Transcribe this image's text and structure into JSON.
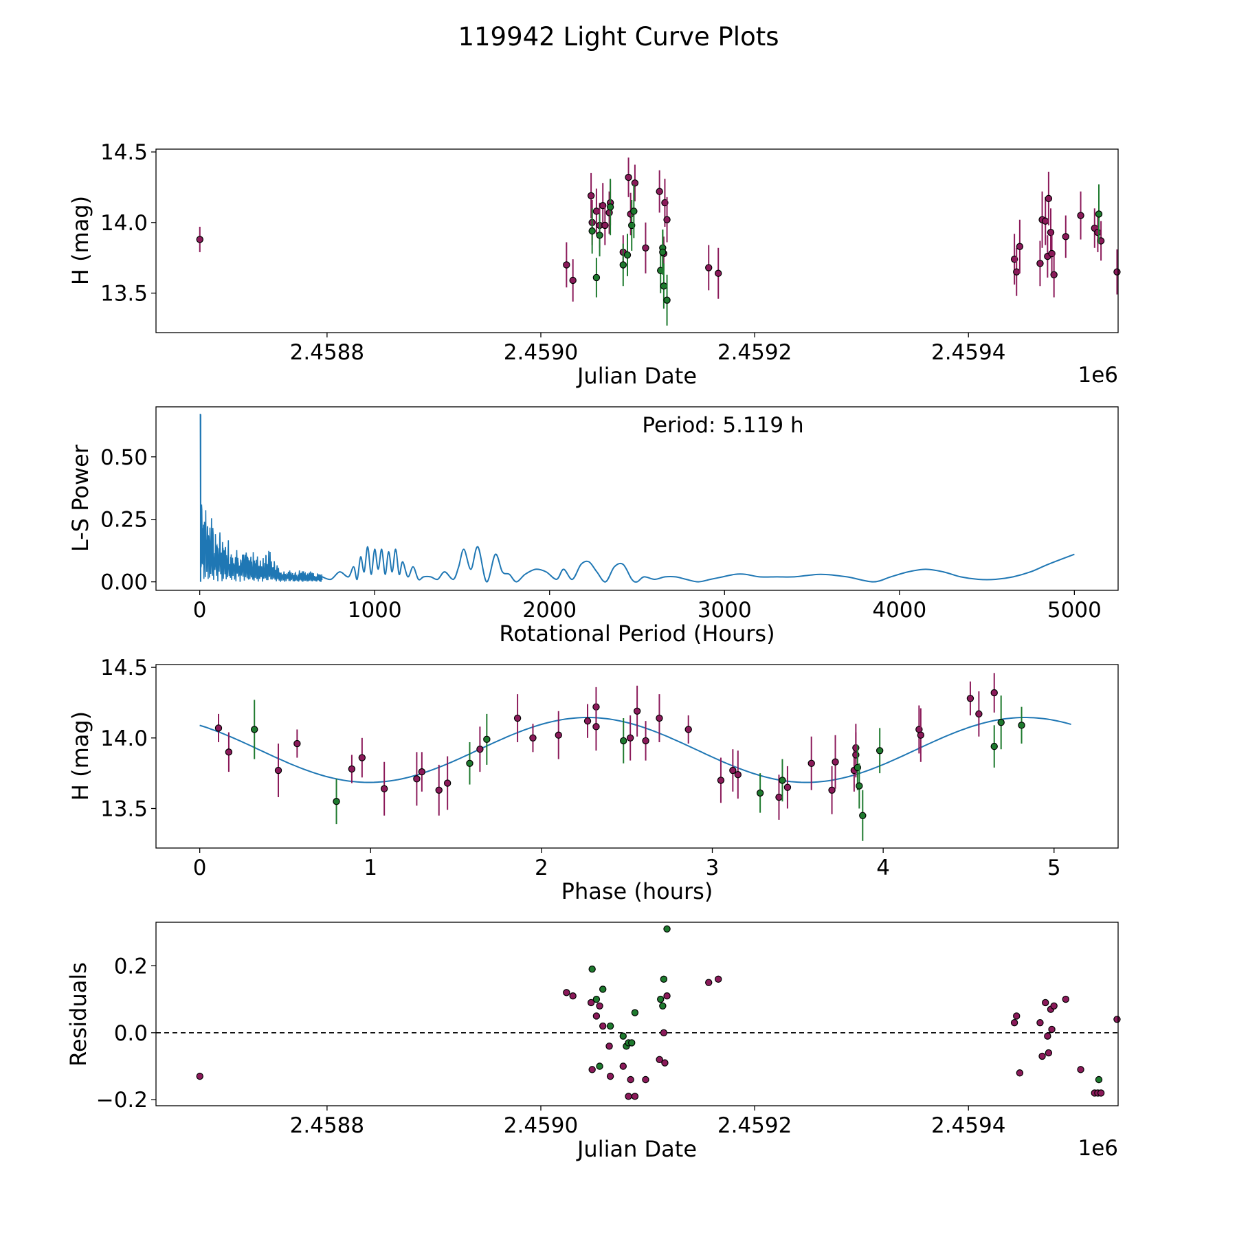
{
  "figure_title": "119942 Light Curve Plots",
  "colors": {
    "purple": "#8b1a5a",
    "green": "#1e7a2e",
    "line": "#1f77b4",
    "marker_edge": "#000000"
  },
  "chart_data": [
    {
      "type": "scatter",
      "title": "",
      "xlabel": "Julian Date",
      "ylabel": "H (mag)",
      "offset_label": "1e6",
      "xlim": [
        2458640,
        2459540
      ],
      "ylim": [
        13.22,
        14.52
      ],
      "xticks": [
        2458800,
        2459000,
        2459200,
        2459400
      ],
      "xtick_labels": [
        "2.4588",
        "2.4590",
        "2.4592",
        "2.4594"
      ],
      "yticks": [
        13.5,
        14.0,
        14.5
      ],
      "ytick_labels": [
        "13.5",
        "14.0",
        "14.5"
      ],
      "series": [
        {
          "name": "purple",
          "points": [
            [
              2458681,
              13.88,
              0.09
            ],
            [
              2459024,
              13.7,
              0.16
            ],
            [
              2459030,
              13.59,
              0.15
            ],
            [
              2459047,
              14.19,
              0.16
            ],
            [
              2459048,
              14.0,
              0.16
            ],
            [
              2459052,
              14.08,
              0.16
            ],
            [
              2459055,
              13.98,
              0.16
            ],
            [
              2459058,
              14.12,
              0.16
            ],
            [
              2459060,
              13.98,
              0.14
            ],
            [
              2459064,
              14.07,
              0.15
            ],
            [
              2459065,
              14.14,
              0.16
            ],
            [
              2459077,
              13.79,
              0.12
            ],
            [
              2459082,
              14.32,
              0.14
            ],
            [
              2459084,
              14.06,
              0.15
            ],
            [
              2459088,
              14.28,
              0.13
            ],
            [
              2459098,
              13.82,
              0.18
            ],
            [
              2459111,
              14.22,
              0.15
            ],
            [
              2459115,
              13.78,
              0.12
            ],
            [
              2459116,
              14.14,
              0.17
            ],
            [
              2459118,
              14.02,
              0.16
            ],
            [
              2459157,
              13.68,
              0.16
            ],
            [
              2459166,
              13.64,
              0.18
            ],
            [
              2459443,
              13.74,
              0.18
            ],
            [
              2459445,
              13.65,
              0.17
            ],
            [
              2459448,
              13.83,
              0.19
            ],
            [
              2459467,
              13.71,
              0.16
            ],
            [
              2459469,
              14.02,
              0.2
            ],
            [
              2459472,
              14.01,
              0.17
            ],
            [
              2459474,
              13.76,
              0.15
            ],
            [
              2459475,
              14.17,
              0.19
            ],
            [
              2459477,
              13.93,
              0.17
            ],
            [
              2459478,
              13.78,
              0.16
            ],
            [
              2459480,
              13.63,
              0.16
            ],
            [
              2459491,
              13.9,
              0.15
            ],
            [
              2459505,
              14.05,
              0.17
            ],
            [
              2459518,
              13.96,
              0.14
            ],
            [
              2459521,
              13.93,
              0.14
            ],
            [
              2459524,
              13.87,
              0.14
            ],
            [
              2459539,
              13.65,
              0.16
            ]
          ]
        },
        {
          "name": "green",
          "points": [
            [
              2459048,
              13.94,
              0.16
            ],
            [
              2459052,
              13.61,
              0.14
            ],
            [
              2459055,
              13.91,
              0.15
            ],
            [
              2459065,
              14.11,
              0.2
            ],
            [
              2459077,
              13.7,
              0.15
            ],
            [
              2459081,
              13.77,
              0.15
            ],
            [
              2459085,
              13.98,
              0.18
            ],
            [
              2459087,
              14.08,
              0.19
            ],
            [
              2459112,
              13.66,
              0.16
            ],
            [
              2459114,
              13.82,
              0.13
            ],
            [
              2459114,
              13.79,
              0.16
            ],
            [
              2459115,
              13.55,
              0.16
            ],
            [
              2459118,
              13.45,
              0.18
            ],
            [
              2459522,
              14.06,
              0.21
            ]
          ]
        }
      ]
    },
    {
      "type": "line",
      "title": "",
      "annotation": "Period: 5.119 h",
      "xlabel": "Rotational Period (Hours)",
      "ylabel": "L-S Power",
      "xlim": [
        -250,
        5250
      ],
      "ylim": [
        -0.034,
        0.7
      ],
      "xticks": [
        0,
        1000,
        2000,
        3000,
        4000,
        5000
      ],
      "xtick_labels": [
        "0",
        "1000",
        "2000",
        "3000",
        "4000",
        "5000"
      ],
      "yticks": [
        0.0,
        0.25,
        0.5
      ],
      "ytick_labels": [
        "0.00",
        "0.25",
        "0.50"
      ],
      "peak_period_hours": 5.119,
      "peak_power": 0.67,
      "envelope": {
        "x": [
          0,
          10,
          50,
          100,
          150,
          200,
          250,
          300,
          350,
          400,
          450,
          500,
          600,
          700
        ],
        "y": [
          0.67,
          0.4,
          0.3,
          0.23,
          0.19,
          0.16,
          0.14,
          0.13,
          0.1,
          0.13,
          0.06,
          0.05,
          0.05,
          0.03
        ]
      },
      "smooth": {
        "x": [
          700,
          750,
          800,
          850,
          880,
          900,
          920,
          940,
          960,
          980,
          1000,
          1020,
          1040,
          1060,
          1080,
          1100,
          1120,
          1140,
          1160,
          1190,
          1220,
          1250,
          1280,
          1320,
          1360,
          1400,
          1450,
          1480,
          1510,
          1550,
          1590,
          1640,
          1690,
          1730,
          1770,
          1810,
          1860,
          1920,
          1980,
          2040,
          2080,
          2130,
          2180,
          2225,
          2270,
          2320,
          2370,
          2420,
          2470,
          2500,
          2540,
          2600,
          2660,
          2720,
          2780,
          2850,
          2920,
          2990,
          3060,
          3120,
          3200,
          3300,
          3400,
          3550,
          3700,
          3850,
          3950,
          4050,
          4150,
          4250,
          4350,
          4450,
          4550,
          4650,
          4750,
          4850,
          5000
        ],
        "y": [
          0.02,
          0.01,
          0.04,
          0.02,
          0.06,
          0.01,
          0.1,
          0.04,
          0.14,
          0.03,
          0.13,
          0.05,
          0.13,
          0.03,
          0.12,
          0.04,
          0.13,
          0.03,
          0.08,
          0.02,
          0.06,
          0.01,
          0.02,
          0.02,
          0.01,
          0.04,
          0.01,
          0.06,
          0.13,
          0.05,
          0.14,
          0.0,
          0.11,
          0.04,
          0.03,
          0.0,
          0.03,
          0.05,
          0.04,
          0.01,
          0.05,
          0.01,
          0.07,
          0.08,
          0.04,
          0.0,
          0.06,
          0.07,
          0.01,
          0.0,
          0.02,
          0.01,
          0.02,
          0.02,
          0.01,
          0.0,
          0.01,
          0.02,
          0.03,
          0.03,
          0.02,
          0.02,
          0.02,
          0.03,
          0.02,
          0.0,
          0.02,
          0.04,
          0.05,
          0.04,
          0.02,
          0.01,
          0.01,
          0.02,
          0.04,
          0.07,
          0.11
        ]
      }
    },
    {
      "type": "scatter",
      "title": "",
      "xlabel": "Phase (hours)",
      "ylabel": "H (mag)",
      "xlim": [
        -0.256,
        5.375
      ],
      "ylim": [
        13.22,
        14.52
      ],
      "xticks": [
        0,
        1,
        2,
        3,
        4,
        5
      ],
      "xtick_labels": [
        "0",
        "1",
        "2",
        "3",
        "4",
        "5"
      ],
      "yticks": [
        13.5,
        14.0,
        14.5
      ],
      "ytick_labels": [
        "13.5",
        "14.0",
        "14.5"
      ],
      "fit_curve": {
        "period": 5.119,
        "mean": 13.915,
        "amplitude": 0.23,
        "phase_peaks": [
          2.27,
          4.77
        ],
        "x_range": [
          0,
          5.119
        ]
      },
      "series": [
        {
          "name": "purple",
          "points": [
            [
              0.11,
              14.07,
              0.1
            ],
            [
              0.17,
              13.9,
              0.14
            ],
            [
              0.46,
              13.77,
              0.19
            ],
            [
              0.57,
              13.96,
              0.1
            ],
            [
              0.89,
              13.78,
              0.1
            ],
            [
              0.95,
              13.86,
              0.14
            ],
            [
              1.08,
              13.64,
              0.19
            ],
            [
              1.27,
              13.71,
              0.19
            ],
            [
              1.3,
              13.76,
              0.14
            ],
            [
              1.4,
              13.63,
              0.18
            ],
            [
              1.45,
              13.68,
              0.19
            ],
            [
              1.64,
              13.92,
              0.16
            ],
            [
              1.86,
              14.14,
              0.17
            ],
            [
              1.95,
              14.0,
              0.1
            ],
            [
              2.1,
              14.02,
              0.17
            ],
            [
              2.27,
              14.12,
              0.12
            ],
            [
              2.32,
              14.22,
              0.14
            ],
            [
              2.32,
              14.08,
              0.17
            ],
            [
              2.52,
              14.0,
              0.16
            ],
            [
              2.56,
              14.19,
              0.18
            ],
            [
              2.61,
              13.98,
              0.14
            ],
            [
              2.69,
              14.14,
              0.17
            ],
            [
              2.86,
              14.06,
              0.1
            ],
            [
              3.05,
              13.7,
              0.16
            ],
            [
              3.12,
              13.77,
              0.15
            ],
            [
              3.15,
              13.74,
              0.17
            ],
            [
              3.39,
              13.58,
              0.16
            ],
            [
              3.44,
              13.65,
              0.15
            ],
            [
              3.58,
              13.82,
              0.19
            ],
            [
              3.7,
              13.63,
              0.17
            ],
            [
              3.72,
              13.83,
              0.19
            ],
            [
              3.83,
              13.77,
              0.15
            ],
            [
              3.84,
              13.93,
              0.17
            ],
            [
              3.84,
              13.88,
              0.16
            ],
            [
              4.21,
              14.06,
              0.17
            ],
            [
              4.22,
              14.02,
              0.19
            ],
            [
              4.51,
              14.28,
              0.12
            ],
            [
              4.56,
              14.17,
              0.16
            ],
            [
              4.65,
              14.32,
              0.14
            ]
          ]
        },
        {
          "name": "green",
          "points": [
            [
              0.32,
              14.06,
              0.21
            ],
            [
              0.8,
              13.55,
              0.16
            ],
            [
              1.58,
              13.82,
              0.15
            ],
            [
              1.68,
              13.99,
              0.18
            ],
            [
              2.48,
              13.98,
              0.16
            ],
            [
              3.28,
              13.61,
              0.14
            ],
            [
              3.41,
              13.7,
              0.15
            ],
            [
              3.85,
              13.79,
              0.16
            ],
            [
              3.86,
              13.66,
              0.16
            ],
            [
              3.88,
              13.45,
              0.18
            ],
            [
              3.98,
              13.91,
              0.16
            ],
            [
              4.65,
              13.94,
              0.15
            ],
            [
              4.69,
              14.11,
              0.19
            ],
            [
              4.81,
              14.09,
              0.13
            ]
          ]
        }
      ]
    },
    {
      "type": "scatter",
      "title": "",
      "xlabel": "Julian Date",
      "ylabel": "Residuals",
      "offset_label": "1e6",
      "xlim": [
        2458640,
        2459540
      ],
      "ylim": [
        -0.218,
        0.33
      ],
      "xticks": [
        2458800,
        2459000,
        2459200,
        2459400
      ],
      "xtick_labels": [
        "2.4588",
        "2.4590",
        "2.4592",
        "2.4594"
      ],
      "yticks": [
        -0.2,
        0.0,
        0.2
      ],
      "ytick_labels": [
        "−0.2",
        "0.0",
        "0.2"
      ],
      "zero_line": 0.0,
      "series": [
        {
          "name": "purple",
          "points": [
            [
              2458681,
              -0.13
            ],
            [
              2459024,
              0.12
            ],
            [
              2459030,
              0.11
            ],
            [
              2459047,
              0.09
            ],
            [
              2459048,
              -0.11
            ],
            [
              2459052,
              0.05
            ],
            [
              2459055,
              0.08
            ],
            [
              2459058,
              0.02
            ],
            [
              2459064,
              -0.04
            ],
            [
              2459065,
              -0.13
            ],
            [
              2459077,
              -0.1
            ],
            [
              2459082,
              -0.19
            ],
            [
              2459084,
              -0.14
            ],
            [
              2459088,
              -0.19
            ],
            [
              2459098,
              -0.14
            ],
            [
              2459111,
              -0.08
            ],
            [
              2459115,
              0.0
            ],
            [
              2459116,
              -0.09
            ],
            [
              2459118,
              0.11
            ],
            [
              2459157,
              0.15
            ],
            [
              2459166,
              0.16
            ],
            [
              2459443,
              0.03
            ],
            [
              2459445,
              0.05
            ],
            [
              2459448,
              -0.12
            ],
            [
              2459467,
              0.03
            ],
            [
              2459469,
              -0.07
            ],
            [
              2459472,
              0.09
            ],
            [
              2459474,
              -0.01
            ],
            [
              2459475,
              -0.06
            ],
            [
              2459477,
              0.07
            ],
            [
              2459478,
              0.01
            ],
            [
              2459480,
              0.08
            ],
            [
              2459491,
              0.1
            ],
            [
              2459505,
              -0.11
            ],
            [
              2459518,
              -0.18
            ],
            [
              2459521,
              -0.18
            ],
            [
              2459524,
              -0.18
            ],
            [
              2459539,
              0.04
            ]
          ]
        },
        {
          "name": "green",
          "points": [
            [
              2459048,
              0.19
            ],
            [
              2459052,
              0.1
            ],
            [
              2459055,
              -0.1
            ],
            [
              2459058,
              0.13
            ],
            [
              2459065,
              0.02
            ],
            [
              2459077,
              -0.01
            ],
            [
              2459080,
              -0.04
            ],
            [
              2459082,
              -0.03
            ],
            [
              2459085,
              -0.03
            ],
            [
              2459088,
              0.06
            ],
            [
              2459112,
              0.1
            ],
            [
              2459114,
              0.08
            ],
            [
              2459115,
              0.16
            ],
            [
              2459118,
              0.31
            ],
            [
              2459522,
              -0.14
            ]
          ]
        }
      ]
    }
  ]
}
